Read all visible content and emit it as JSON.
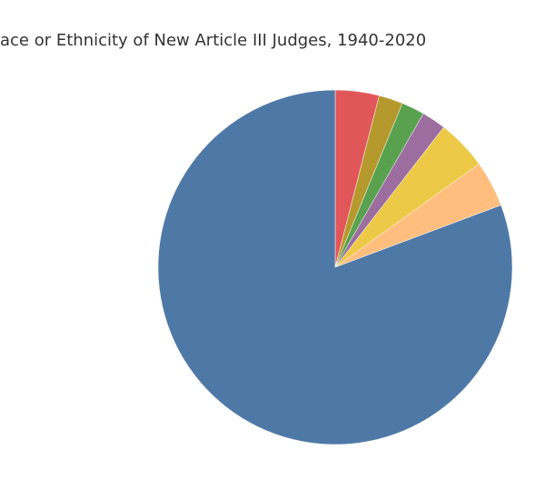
{
  "chart_data": {
    "type": "pie",
    "title": "ace or Ethnicity of New Article III Judges, 1940-2020",
    "values": [
      4,
      2.2,
      2.1,
      2.2,
      4.6,
      4.2,
      80.7
    ],
    "colors": [
      "#e15759",
      "#b6992d",
      "#59a14f",
      "#9c6ea0",
      "#edc948",
      "#ffbe7d",
      "#4e79a7"
    ]
  }
}
